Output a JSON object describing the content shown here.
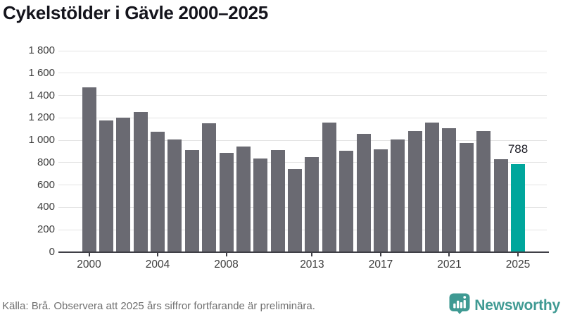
{
  "title": "Cykelstölder i Gävle 2000–2025",
  "footer": {
    "source": "Källa: Brå. Observera att 2025 års siffror fortfarande är preliminära.",
    "brand_name": "Newsworthy",
    "brand_icon": "newsworthy-speech-bubble-bar-chart-icon"
  },
  "colors": {
    "bar": "#6a6a72",
    "highlight": "#00a69c",
    "brand": "#3f9a93",
    "grid": "#e4e4e4",
    "axis": "#3f3f46",
    "title_text": "#14141c",
    "axis_text": "#3d3d3d",
    "muted_text": "#6f6f6f",
    "value_text": "#1d1d26"
  },
  "chart_data": {
    "type": "bar",
    "title": "Cykelstölder i Gävle 2000–2025",
    "xlabel": "",
    "ylabel": "",
    "x": [
      2000,
      2001,
      2002,
      2003,
      2004,
      2005,
      2006,
      2007,
      2008,
      2009,
      2010,
      2011,
      2012,
      2013,
      2014,
      2015,
      2016,
      2017,
      2018,
      2019,
      2020,
      2021,
      2022,
      2023,
      2024,
      2025
    ],
    "values": [
      1470,
      1175,
      1205,
      1255,
      1075,
      1010,
      910,
      1150,
      890,
      945,
      835,
      910,
      745,
      850,
      1155,
      905,
      1055,
      920,
      1010,
      1080,
      1155,
      1110,
      975,
      1080,
      830,
      788
    ],
    "highlight_year": 2025,
    "highlight_label": "788",
    "x_tick_labels": [
      "2000",
      "2004",
      "2008",
      "2013",
      "2017",
      "2021",
      "2025"
    ],
    "y_ticks": [
      0,
      200,
      400,
      600,
      800,
      1000,
      1200,
      1400,
      1600,
      1800
    ],
    "y_tick_labels": [
      "0",
      "200",
      "400",
      "600",
      "800",
      "1 000",
      "1 200",
      "1 400",
      "1 600",
      "1 800"
    ],
    "ylim": [
      0,
      1800
    ],
    "grid": true,
    "legend_position": "none"
  }
}
